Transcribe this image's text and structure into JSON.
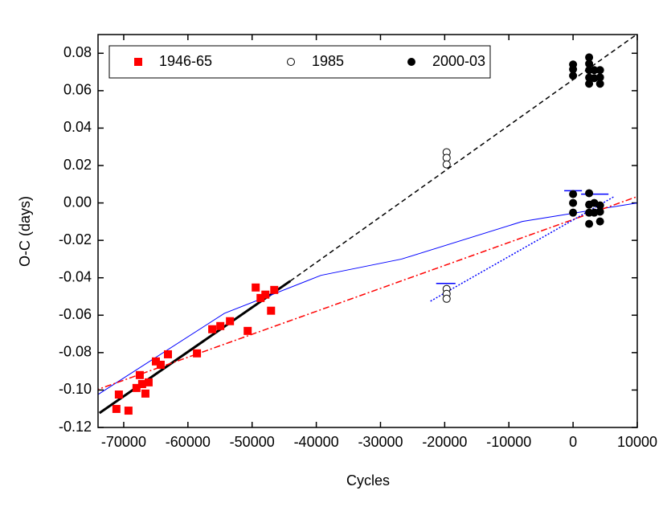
{
  "chart_data": {
    "type": "scatter",
    "xlabel": "Cycles",
    "ylabel": "O-C (days)",
    "xlim": [
      -74000,
      10000
    ],
    "ylim": [
      -0.12,
      0.09
    ],
    "xticks": [
      -70000,
      -60000,
      -50000,
      -40000,
      -30000,
      -20000,
      -10000,
      0,
      10000
    ],
    "yticks": [
      -0.12,
      {
        "value": -0.1,
        "label": "-0.10"
      },
      -0.08,
      -0.06,
      -0.04,
      -0.02,
      {
        "value": 0,
        "label": "0.00"
      },
      0.02,
      0.04,
      0.06,
      0.08
    ],
    "legend": "upper left",
    "series": [
      {
        "name": "1946-65",
        "color": "#ff0000",
        "marker": "square",
        "x": [
          -71140,
          -70760,
          -69260,
          -68010,
          -67500,
          -67130,
          -66620,
          -66120,
          -64990,
          -64240,
          -63110,
          -58590,
          -56210,
          -54950,
          -53450,
          -50690,
          -49440,
          -48680,
          -47930,
          -47050,
          -46550
        ],
        "values": [
          -0.1101,
          -0.1024,
          -0.111,
          -0.0989,
          -0.092,
          -0.0968,
          -0.1019,
          -0.0959,
          -0.0847,
          -0.0865,
          -0.0809,
          -0.0804,
          -0.0675,
          -0.0658,
          -0.0632,
          -0.0684,
          -0.0452,
          -0.0508,
          -0.049,
          -0.0576,
          -0.0465
        ]
      },
      {
        "name": "1985",
        "color": "#000000",
        "marker": "open-circle",
        "x": [
          -19700,
          -19700,
          -19700,
          -19700,
          -19700,
          -19700
        ],
        "values": [
          0.0271,
          0.0241,
          0.0206,
          -0.046,
          -0.0486,
          -0.0512
        ]
      },
      {
        "name": "2000-03",
        "color": "#000000",
        "marker": "circle",
        "x": [
          0,
          0,
          0,
          0,
          0,
          0,
          2500,
          2500,
          2500,
          2500,
          2500,
          3300,
          3300,
          4200,
          4200,
          4200,
          2500,
          2500,
          2500,
          2500,
          3300,
          3300,
          4200,
          4200,
          4200
        ],
        "values": [
          0.074,
          0.0714,
          0.068,
          0.0047,
          0,
          -0.0052,
          0.0778,
          0.0744,
          0.071,
          0.067,
          0.0637,
          0.071,
          0.0667,
          0.071,
          0.0671,
          0.0637,
          0.0052,
          -0.0009,
          -0.0052,
          -0.0112,
          0,
          -0.0052,
          -0.0013,
          -0.0047,
          -0.0099
        ]
      }
    ],
    "lines": [
      {
        "color": "#000000",
        "style": "solid",
        "width": 3,
        "x": [
          -73780,
          -44040
        ],
        "values": [
          -0.1123,
          -0.0417
        ]
      },
      {
        "color": "#000000",
        "style": "dashed",
        "width": 1.5,
        "x": [
          -44040,
          10000
        ],
        "values": [
          -0.0417,
          0.0903
        ]
      },
      {
        "color": "#0000ff",
        "style": "solid",
        "width": 1,
        "x": [
          -74780,
          -54310,
          -39270,
          -26720,
          -7900,
          10000
        ],
        "values": [
          -0.1041,
          -0.059,
          -0.0387,
          -0.03,
          -0.0099,
          0
        ]
      },
      {
        "color": "#ff0000",
        "style": "dashdot",
        "width": 1.5,
        "x": [
          -74780,
          10000
        ],
        "values": [
          -0.1006,
          0.0034
        ]
      },
      {
        "color": "#0000ff",
        "style": "dotted",
        "width": 1.5,
        "x": [
          -22210,
          6400
        ],
        "values": [
          -0.0525,
          0.0034
        ]
      },
      {
        "color": "#0000ff",
        "style": "solid",
        "width": 1.5,
        "x": [
          -21330,
          -18320
        ],
        "values": [
          -0.043,
          -0.043
        ]
      },
      {
        "color": "#0000ff",
        "style": "solid",
        "width": 1.5,
        "x": [
          -1380,
          1380
        ],
        "values": [
          0.0065,
          0.0065
        ]
      },
      {
        "color": "#0000ff",
        "style": "solid",
        "width": 1.5,
        "x": [
          1250,
          5520
        ],
        "values": [
          0.0047,
          0.0047
        ]
      }
    ]
  }
}
